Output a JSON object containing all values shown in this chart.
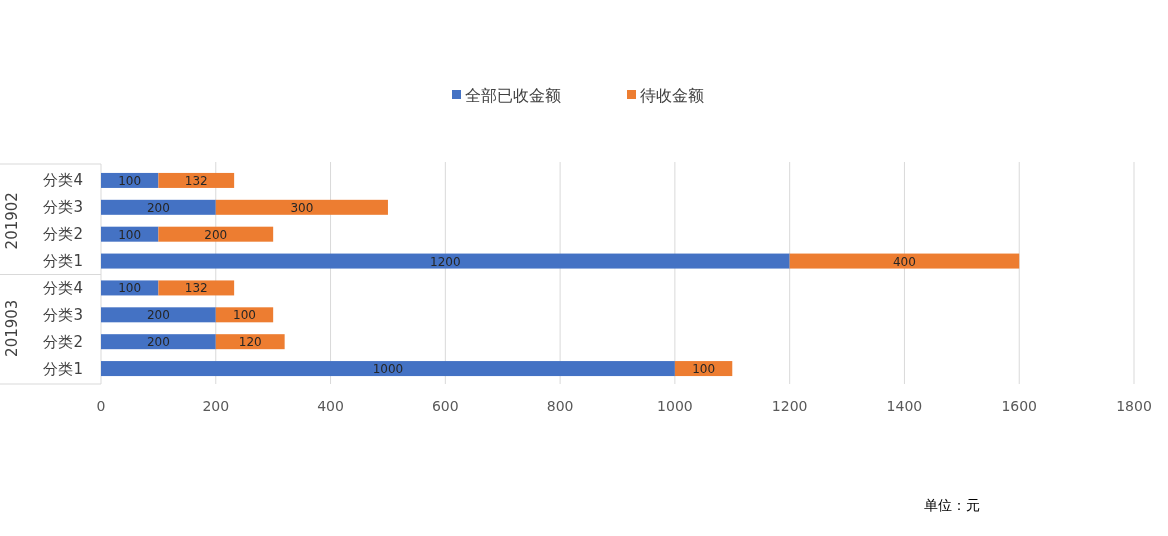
{
  "chart_data": {
    "type": "bar",
    "orientation": "horizontal",
    "stacked": true,
    "categories": [
      "分类4",
      "分类3",
      "分类2",
      "分类1",
      "分类4",
      "分类3",
      "分类2",
      "分类1"
    ],
    "series": [
      {
        "name": "全部已收金额",
        "color": "#4472c4",
        "values": [
          100,
          200,
          100,
          1200,
          100,
          200,
          200,
          1000
        ]
      },
      {
        "name": "待收金额",
        "color": "#ed7d31",
        "values": [
          132,
          300,
          200,
          400,
          132,
          100,
          120,
          100
        ]
      }
    ],
    "xlim": [
      0,
      1800
    ],
    "xticks": [
      0,
      200,
      400,
      600,
      800,
      1000,
      1200,
      1400,
      1600,
      1800
    ],
    "grid": "x",
    "legend": "top",
    "data_labels": true,
    "annotations": [
      "201902",
      "201903",
      "单位：元"
    ]
  }
}
